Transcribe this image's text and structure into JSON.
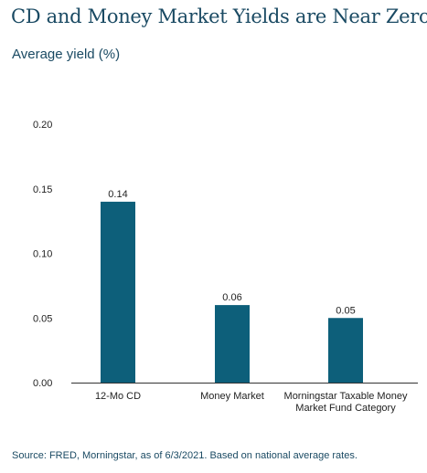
{
  "header": {
    "title": "CD and Money Market Yields are Near Zero",
    "subtitle": "Average yield (%)"
  },
  "footer": {
    "source": "Source: FRED, Morningstar, as of 6/3/2021. Based on national average rates."
  },
  "colors": {
    "bar": "#0d5f7a",
    "title": "#1a4a63",
    "axis": "#333333"
  },
  "chart_data": {
    "type": "bar",
    "title": "CD and Money Market Yields are Near Zero",
    "ylabel": "Average yield (%)",
    "xlabel": "",
    "ylim": [
      0,
      0.2
    ],
    "yticks": [
      "0.00",
      "0.05",
      "0.10",
      "0.15",
      "0.20"
    ],
    "categories": [
      [
        "12-Mo CD"
      ],
      [
        "Money Market"
      ],
      [
        "Morningstar Taxable Money",
        "Market Fund Category"
      ]
    ],
    "values": [
      0.14,
      0.06,
      0.05
    ],
    "data_labels": [
      "0.14",
      "0.06",
      "0.05"
    ],
    "grid": false,
    "legend": "none"
  }
}
